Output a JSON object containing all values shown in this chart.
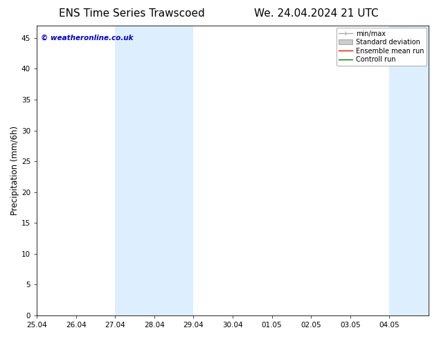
{
  "title_left": "ENS Time Series Trawscoed",
  "title_right": "We. 24.04.2024 21 UTC",
  "ylabel": "Precipitation (mm/6h)",
  "watermark": "© weatheronline.co.uk",
  "watermark_color": "#0000cc",
  "xlim_start": 0,
  "xlim_end": 10,
  "ylim": [
    0,
    47
  ],
  "yticks": [
    0,
    5,
    10,
    15,
    20,
    25,
    30,
    35,
    40,
    45
  ],
  "xtick_labels": [
    "25.04",
    "26.04",
    "27.04",
    "28.04",
    "29.04",
    "30.04",
    "01.05",
    "02.05",
    "03.05",
    "04.05"
  ],
  "shaded_bands": [
    {
      "x_start": 2,
      "x_end": 4,
      "color": "#ddeeff"
    },
    {
      "x_start": 9,
      "x_end": 10,
      "color": "#ddeeff"
    }
  ],
  "legend_entries": [
    {
      "label": "min/max",
      "color": "#aaaaaa",
      "lw": 1,
      "style": "line_with_caps"
    },
    {
      "label": "Standard deviation",
      "color": "#cccccc",
      "lw": 5,
      "style": "band"
    },
    {
      "label": "Ensemble mean run",
      "color": "#ff0000",
      "lw": 1,
      "style": "line"
    },
    {
      "label": "Controll run",
      "color": "#007700",
      "lw": 1,
      "style": "line"
    }
  ],
  "bg_color": "#ffffff",
  "plot_bg_color": "#ffffff",
  "grid_color": "#dddddd",
  "title_fontsize": 11,
  "tick_label_fontsize": 7.5,
  "ylabel_fontsize": 8.5,
  "legend_fontsize": 7,
  "watermark_fontsize": 7.5,
  "shaded_band_color": "#ddeeff"
}
